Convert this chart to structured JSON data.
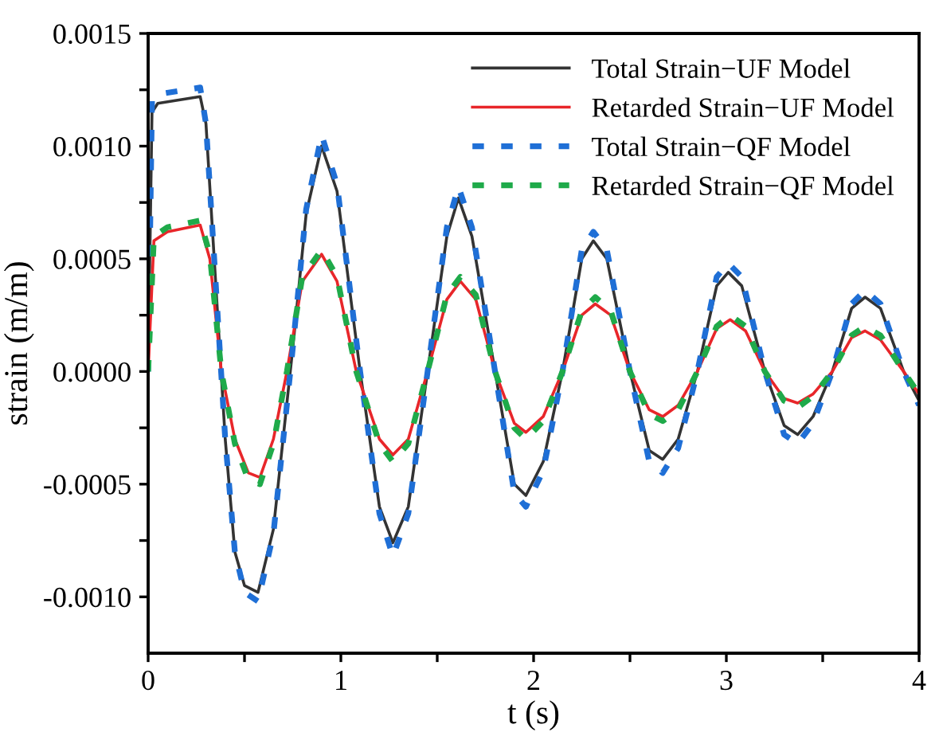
{
  "chart_data": {
    "type": "line",
    "xlabel": "t (s)",
    "ylabel": "strain (m/m)",
    "xlim": [
      0,
      4
    ],
    "ylim": [
      -0.00125,
      0.0015
    ],
    "xticks": [
      0,
      {
        "value": 0.5,
        "label": null
      },
      1,
      {
        "value": 1.5,
        "label": null
      },
      2,
      {
        "value": 2.5,
        "label": null
      },
      3,
      {
        "value": 3.5,
        "label": null
      },
      4
    ],
    "yticks": [
      {
        "value": -0.001,
        "label": "-0.0010"
      },
      {
        "value": -0.00075,
        "label": null
      },
      {
        "value": -0.0005,
        "label": "-0.0005"
      },
      {
        "value": -0.00025,
        "label": null
      },
      {
        "value": 0,
        "label": "0.0000"
      },
      {
        "value": 0.00025,
        "label": null
      },
      {
        "value": 0.0005,
        "label": "0.0005"
      },
      {
        "value": 0.00075,
        "label": null
      },
      {
        "value": 0.001,
        "label": "0.0010"
      },
      {
        "value": 0.00125,
        "label": null
      },
      {
        "value": 0.0015,
        "label": "0.0015"
      }
    ],
    "grid": false,
    "legend": "top right",
    "marker": "none",
    "series": [
      {
        "name": "Total Strain−UF Model",
        "color": "#333333",
        "line_style": "solid",
        "x": [
          0,
          0.02,
          0.05,
          0.27,
          0.3,
          0.35,
          0.4,
          0.45,
          0.5,
          0.57,
          0.65,
          0.75,
          0.82,
          0.9,
          0.98,
          1.1,
          1.2,
          1.27,
          1.35,
          1.45,
          1.55,
          1.61,
          1.68,
          1.8,
          1.9,
          1.96,
          2.05,
          2.15,
          2.25,
          2.31,
          2.38,
          2.5,
          2.6,
          2.67,
          2.75,
          2.85,
          2.95,
          3.01,
          3.08,
          3.2,
          3.3,
          3.37,
          3.45,
          3.55,
          3.65,
          3.72,
          3.8,
          3.92,
          4.0
        ],
        "values": [
          0,
          0.00115,
          0.00119,
          0.00122,
          0.0011,
          0.0004,
          -0.0003,
          -0.0008,
          -0.00095,
          -0.00098,
          -0.0007,
          0.0001,
          0.0007,
          0.001,
          0.0008,
          0,
          -0.0006,
          -0.00076,
          -0.0006,
          0,
          0.0006,
          0.00077,
          0.0006,
          0,
          -0.0005,
          -0.00055,
          -0.0004,
          0,
          0.0005,
          0.00058,
          0.0005,
          0,
          -0.00035,
          -0.00039,
          -0.0003,
          0,
          0.00038,
          0.00044,
          0.00038,
          0,
          -0.00024,
          -0.00028,
          -0.0002,
          0,
          0.00028,
          0.00033,
          0.00028,
          0,
          -0.00013
        ]
      },
      {
        "name": "Retarded Strain−UF Model",
        "color": "#e8262a",
        "line_style": "solid",
        "x": [
          0,
          0.03,
          0.1,
          0.27,
          0.32,
          0.38,
          0.45,
          0.52,
          0.58,
          0.65,
          0.72,
          0.8,
          0.9,
          0.98,
          1.08,
          1.2,
          1.27,
          1.35,
          1.45,
          1.55,
          1.62,
          1.7,
          1.8,
          1.9,
          1.96,
          2.05,
          2.15,
          2.25,
          2.32,
          2.4,
          2.5,
          2.6,
          2.67,
          2.75,
          2.85,
          2.95,
          3.02,
          3.1,
          3.2,
          3.3,
          3.37,
          3.45,
          3.55,
          3.65,
          3.72,
          3.8,
          3.92,
          4.0
        ],
        "values": [
          0,
          0.00058,
          0.00062,
          0.00065,
          0.0005,
          0,
          -0.0003,
          -0.00045,
          -0.00047,
          -0.0003,
          0,
          0.0004,
          0.00052,
          0.0004,
          0,
          -0.0003,
          -0.00037,
          -0.0003,
          0,
          0.00032,
          0.0004,
          0.00032,
          0,
          -0.00023,
          -0.00027,
          -0.0002,
          0,
          0.00025,
          0.0003,
          0.00025,
          0,
          -0.00017,
          -0.0002,
          -0.00015,
          0,
          0.00019,
          0.00023,
          0.00018,
          0,
          -0.00012,
          -0.00014,
          -0.0001,
          0,
          0.00015,
          0.00018,
          0.00014,
          0,
          -0.0001
        ]
      },
      {
        "name": "Total Strain−QF Model",
        "color": "#1f6fd6",
        "line_style": "dashed",
        "x": [
          0,
          0.02,
          0.05,
          0.27,
          0.3,
          0.35,
          0.4,
          0.45,
          0.5,
          0.57,
          0.65,
          0.75,
          0.82,
          0.9,
          0.98,
          1.1,
          1.2,
          1.27,
          1.35,
          1.45,
          1.55,
          1.61,
          1.68,
          1.8,
          1.9,
          1.96,
          2.05,
          2.15,
          2.25,
          2.31,
          2.38,
          2.5,
          2.6,
          2.67,
          2.75,
          2.85,
          2.95,
          3.01,
          3.08,
          3.2,
          3.3,
          3.37,
          3.45,
          3.55,
          3.65,
          3.72,
          3.8,
          3.92,
          4.0
        ],
        "values": [
          0,
          0.0012,
          0.00123,
          0.00126,
          0.0011,
          0.0004,
          -0.0003,
          -0.0008,
          -0.00098,
          -0.00102,
          -0.00072,
          0.0001,
          0.00072,
          0.00105,
          0.00083,
          0,
          -0.00063,
          -0.00082,
          -0.00063,
          0,
          0.00064,
          0.00082,
          0.00064,
          0,
          -0.00054,
          -0.0006,
          -0.00044,
          0,
          0.00054,
          0.00062,
          0.00054,
          0,
          -0.0004,
          -0.00045,
          -0.00034,
          0,
          0.00042,
          0.00048,
          0.00042,
          0,
          -0.00028,
          -0.00032,
          -0.00023,
          0,
          0.0003,
          0.00036,
          0.0003,
          0,
          -0.00015
        ]
      },
      {
        "name": "Retarded Strain−QF Model",
        "color": "#1faa4a",
        "line_style": "dashed",
        "x": [
          0,
          0.03,
          0.1,
          0.27,
          0.32,
          0.38,
          0.45,
          0.52,
          0.58,
          0.65,
          0.72,
          0.8,
          0.9,
          0.98,
          1.08,
          1.2,
          1.27,
          1.35,
          1.45,
          1.55,
          1.62,
          1.7,
          1.8,
          1.9,
          1.96,
          2.05,
          2.15,
          2.25,
          2.32,
          2.4,
          2.5,
          2.6,
          2.67,
          2.75,
          2.85,
          2.95,
          3.02,
          3.1,
          3.2,
          3.3,
          3.37,
          3.45,
          3.55,
          3.65,
          3.72,
          3.8,
          3.92,
          4.0
        ],
        "values": [
          0,
          0.0006,
          0.00064,
          0.00067,
          0.00052,
          0,
          -0.00032,
          -0.00048,
          -0.0005,
          -0.00032,
          0,
          0.00042,
          0.00054,
          0.00042,
          0,
          -0.00032,
          -0.0004,
          -0.00032,
          0,
          0.00034,
          0.00042,
          0.00034,
          0,
          -0.00025,
          -0.0003,
          -0.00022,
          0,
          0.00027,
          0.00033,
          0.00027,
          0,
          -0.00019,
          -0.00022,
          -0.00017,
          0,
          0.0002,
          0.00025,
          0.0002,
          0,
          -0.00013,
          -0.00016,
          -0.00011,
          0,
          0.00016,
          0.0002,
          0.00016,
          0,
          -0.0001
        ]
      }
    ]
  }
}
